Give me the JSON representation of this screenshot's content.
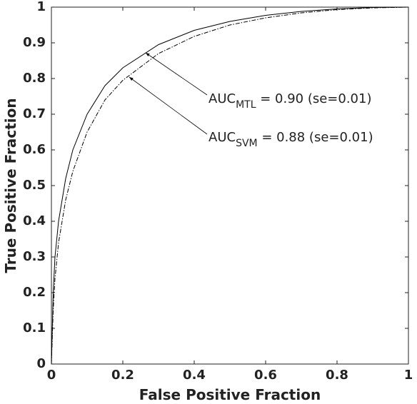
{
  "chart_data": {
    "type": "line",
    "xlabel": "False Positive Fraction",
    "ylabel": "True Positive Fraction",
    "xlim": [
      0,
      1
    ],
    "ylim": [
      0,
      1
    ],
    "xticks": [
      0,
      0.2,
      0.4,
      0.6,
      0.8,
      1
    ],
    "yticks": [
      0,
      0.1,
      0.2,
      0.3,
      0.4,
      0.5,
      0.6,
      0.7,
      0.8,
      0.9,
      1
    ],
    "grid": false,
    "series": [
      {
        "color": "#000000",
        "dash": "solid",
        "x": [
          0,
          0.005,
          0.01,
          0.02,
          0.04,
          0.06,
          0.1,
          0.15,
          0.2,
          0.3,
          0.4,
          0.5,
          0.6,
          0.7,
          0.8,
          0.9,
          1
        ],
        "values": [
          0,
          0.2,
          0.3,
          0.4,
          0.52,
          0.6,
          0.7,
          0.78,
          0.83,
          0.895,
          0.935,
          0.96,
          0.977,
          0.988,
          0.995,
          0.999,
          1
        ]
      },
      {
        "color": "#000000",
        "dash": "dashdot",
        "x": [
          0,
          0.005,
          0.01,
          0.02,
          0.04,
          0.06,
          0.1,
          0.15,
          0.2,
          0.3,
          0.4,
          0.5,
          0.6,
          0.7,
          0.8,
          0.9,
          1
        ],
        "values": [
          0,
          0.15,
          0.24,
          0.34,
          0.46,
          0.54,
          0.65,
          0.74,
          0.795,
          0.87,
          0.918,
          0.95,
          0.97,
          0.984,
          0.993,
          0.998,
          1
        ]
      }
    ],
    "annotations": [
      {
        "text": "AUC",
        "subscript": "MTL",
        "suffix": " = 0.90 (se=0.01)"
      },
      {
        "text": "AUC",
        "subscript": "SVM",
        "suffix": " = 0.88 (se=0.01)"
      }
    ]
  }
}
